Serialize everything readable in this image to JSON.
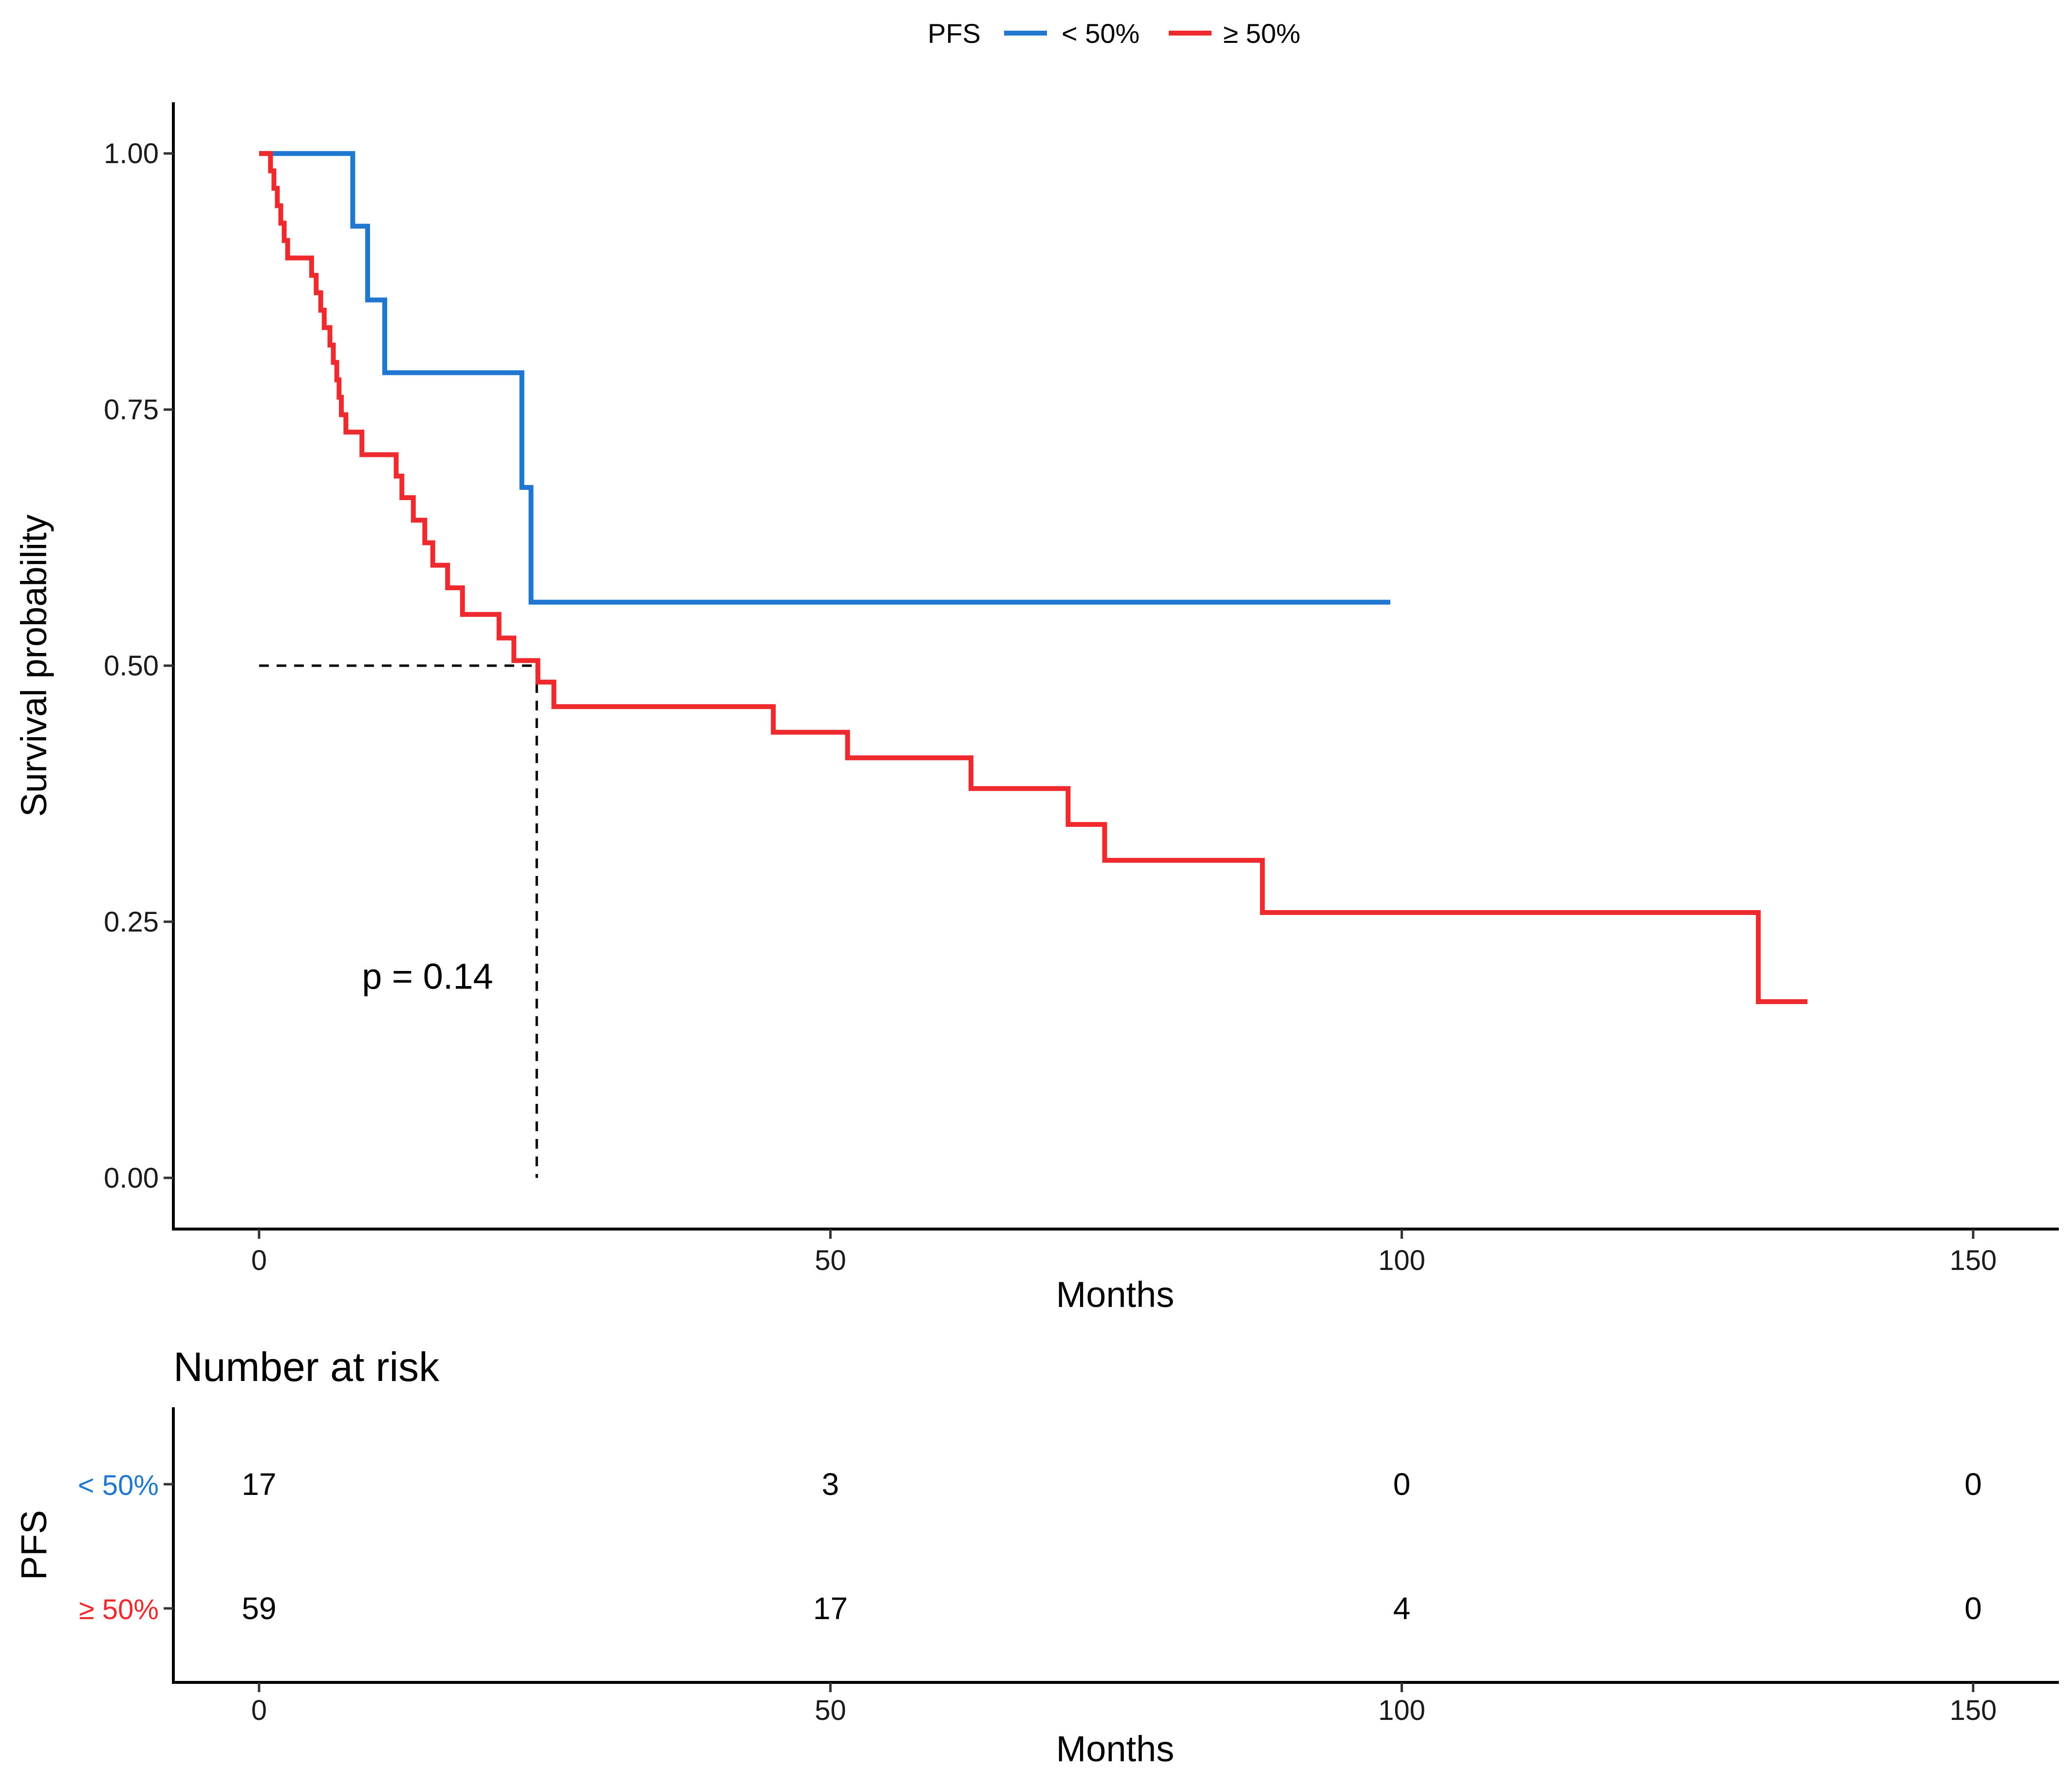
{
  "chart_data": {
    "type": "line",
    "subtype": "kaplan-meier-step",
    "legend": {
      "title": "PFS",
      "position": "top",
      "entries": [
        {
          "label": "< 50%",
          "color": "#1F77D0"
        },
        {
          "label": "≥ 50%",
          "color": "#EE2A2E"
        }
      ]
    },
    "xlabel": "Months",
    "ylabel": "Survival probability",
    "xlim": [
      -7.5,
      157.5
    ],
    "ylim": [
      -0.05,
      1.05
    ],
    "x_ticks": [
      0,
      50,
      100,
      150
    ],
    "x_tick_labels": [
      "0",
      "50",
      "100",
      "150"
    ],
    "y_ticks": [
      0,
      0.25,
      0.5,
      0.75,
      1.0
    ],
    "y_tick_labels": [
      "0.00",
      "0.25",
      "0.50",
      "0.75",
      "1.00"
    ],
    "annotation": "p = 0.14",
    "annotation_at": {
      "x": 9,
      "y": 0.197
    },
    "median_line": {
      "x": 24.3,
      "y": 0.5
    },
    "series": [
      {
        "name": "< 50%",
        "color": "#1F77D0",
        "points": [
          [
            0,
            1.0
          ],
          [
            8.2,
            1.0
          ],
          [
            8.2,
            0.929
          ],
          [
            9.5,
            0.929
          ],
          [
            9.5,
            0.857
          ],
          [
            11,
            0.857
          ],
          [
            11,
            0.786
          ],
          [
            23,
            0.786
          ],
          [
            23,
            0.674
          ],
          [
            23.8,
            0.674
          ],
          [
            23.8,
            0.562
          ],
          [
            99,
            0.562
          ]
        ]
      },
      {
        "name": "≥ 50%",
        "color": "#EE2A2E",
        "points": [
          [
            0,
            1.0
          ],
          [
            1.0,
            1.0
          ],
          [
            1.0,
            0.983
          ],
          [
            1.3,
            0.983
          ],
          [
            1.3,
            0.966
          ],
          [
            1.6,
            0.966
          ],
          [
            1.6,
            0.949
          ],
          [
            1.9,
            0.949
          ],
          [
            1.9,
            0.932
          ],
          [
            2.2,
            0.932
          ],
          [
            2.2,
            0.915
          ],
          [
            2.5,
            0.915
          ],
          [
            2.5,
            0.898
          ],
          [
            4.6,
            0.898
          ],
          [
            4.6,
            0.881
          ],
          [
            5.0,
            0.881
          ],
          [
            5.0,
            0.864
          ],
          [
            5.4,
            0.864
          ],
          [
            5.4,
            0.847
          ],
          [
            5.7,
            0.847
          ],
          [
            5.7,
            0.83
          ],
          [
            6.2,
            0.83
          ],
          [
            6.2,
            0.813
          ],
          [
            6.5,
            0.813
          ],
          [
            6.5,
            0.796
          ],
          [
            6.8,
            0.796
          ],
          [
            6.8,
            0.779
          ],
          [
            7.0,
            0.779
          ],
          [
            7.0,
            0.762
          ],
          [
            7.2,
            0.762
          ],
          [
            7.2,
            0.745
          ],
          [
            7.6,
            0.745
          ],
          [
            7.6,
            0.728
          ],
          [
            9.0,
            0.728
          ],
          [
            9.0,
            0.706
          ],
          [
            12.0,
            0.706
          ],
          [
            12.0,
            0.685
          ],
          [
            12.5,
            0.685
          ],
          [
            12.5,
            0.664
          ],
          [
            13.5,
            0.664
          ],
          [
            13.5,
            0.642
          ],
          [
            14.5,
            0.642
          ],
          [
            14.5,
            0.62
          ],
          [
            15.2,
            0.62
          ],
          [
            15.2,
            0.598
          ],
          [
            16.5,
            0.598
          ],
          [
            16.5,
            0.576
          ],
          [
            17.8,
            0.576
          ],
          [
            17.8,
            0.55
          ],
          [
            21.0,
            0.55
          ],
          [
            21.0,
            0.527
          ],
          [
            22.3,
            0.527
          ],
          [
            22.3,
            0.505
          ],
          [
            24.4,
            0.505
          ],
          [
            24.4,
            0.484
          ],
          [
            25.8,
            0.484
          ],
          [
            25.8,
            0.46
          ],
          [
            45,
            0.46
          ],
          [
            45,
            0.435
          ],
          [
            51.5,
            0.435
          ],
          [
            51.5,
            0.41
          ],
          [
            62.3,
            0.41
          ],
          [
            62.3,
            0.38
          ],
          [
            70.8,
            0.38
          ],
          [
            70.8,
            0.345
          ],
          [
            74,
            0.345
          ],
          [
            74,
            0.31
          ],
          [
            87.8,
            0.31
          ],
          [
            87.8,
            0.259
          ],
          [
            131.2,
            0.259
          ],
          [
            131.2,
            0.172
          ],
          [
            135.5,
            0.172
          ]
        ]
      }
    ],
    "risk_table": {
      "title": "Number at risk",
      "ylabel": "PFS",
      "xlabel": "Months",
      "times": [
        0,
        50,
        100,
        150
      ],
      "time_labels": [
        "0",
        "50",
        "100",
        "150"
      ],
      "rows": [
        {
          "label": "< 50%",
          "color": "#1F77D0",
          "values": [
            "17",
            "3",
            "0",
            "0"
          ]
        },
        {
          "label": "≥ 50%",
          "color": "#EE2A2E",
          "values": [
            "59",
            "17",
            "4",
            "0"
          ]
        }
      ]
    }
  }
}
